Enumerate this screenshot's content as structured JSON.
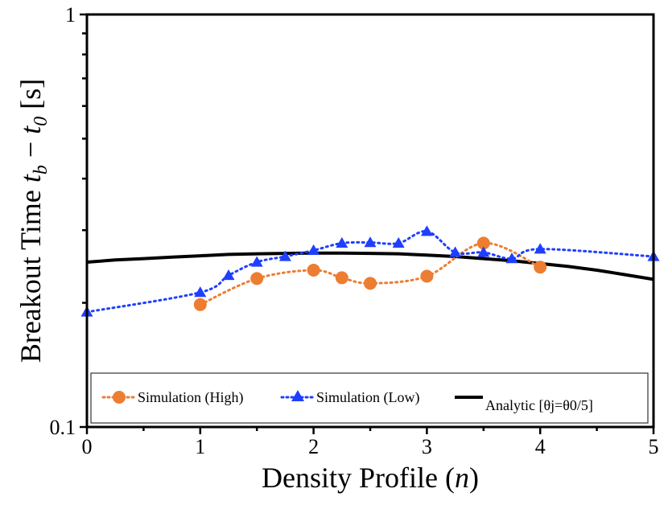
{
  "chart_data": {
    "type": "line",
    "title": "",
    "xlabel": {
      "prefix": "Density Profile (",
      "var": "n",
      "suffix": ")"
    },
    "ylabel": {
      "prefix": "Breakout Time ",
      "t1": "t",
      "s1": "b",
      "minus": " − ",
      "t2": "t",
      "s2": "0",
      "suffix": " [s]"
    },
    "xlim": [
      0,
      5
    ],
    "ylim": [
      0.1,
      1
    ],
    "yscale": "log",
    "grid": false,
    "legend_position": "bottom",
    "x_ticks": [
      0,
      1,
      2,
      3,
      4,
      5
    ],
    "x_tick_labels": [
      "0",
      "1",
      "2",
      "3",
      "4",
      "5"
    ],
    "y_tick_labels": [
      {
        "value": 1,
        "label": "1"
      },
      {
        "value": 0.1,
        "label": "0.1"
      }
    ],
    "series": [
      {
        "name": "Simulation (High)",
        "color": "#ED7D31",
        "marker": "circle",
        "line_style": "dotted",
        "x": [
          1,
          1.5,
          2,
          2.25,
          2.5,
          3,
          3.5,
          4
        ],
        "y": [
          0.198,
          0.229,
          0.24,
          0.23,
          0.223,
          0.232,
          0.279,
          0.244
        ]
      },
      {
        "name": "Simulation (Low)",
        "color": "#1F3FFF",
        "marker": "triangle",
        "line_style": "dotted",
        "x": [
          0,
          1,
          1.25,
          1.5,
          1.75,
          2,
          2.25,
          2.5,
          2.75,
          3,
          3.25,
          3.5,
          3.75,
          4,
          5
        ],
        "y": [
          0.19,
          0.212,
          0.233,
          0.251,
          0.259,
          0.268,
          0.279,
          0.28,
          0.279,
          0.298,
          0.265,
          0.265,
          0.256,
          0.27,
          0.259
        ]
      },
      {
        "name": "Analytic [θj=θ0/5]",
        "color": "#000000",
        "marker": "none",
        "line_style": "solid",
        "x": [
          0,
          0.25,
          0.5,
          0.75,
          1,
          1.25,
          1.5,
          1.75,
          2,
          2.25,
          2.5,
          2.75,
          3,
          3.25,
          3.5,
          3.75,
          4,
          4.25,
          4.5,
          4.75,
          5
        ],
        "y": [
          0.251,
          0.254,
          0.256,
          0.258,
          0.26,
          0.262,
          0.263,
          0.2635,
          0.264,
          0.264,
          0.2635,
          0.263,
          0.261,
          0.259,
          0.256,
          0.253,
          0.249,
          0.245,
          0.24,
          0.234,
          0.228
        ]
      }
    ]
  }
}
